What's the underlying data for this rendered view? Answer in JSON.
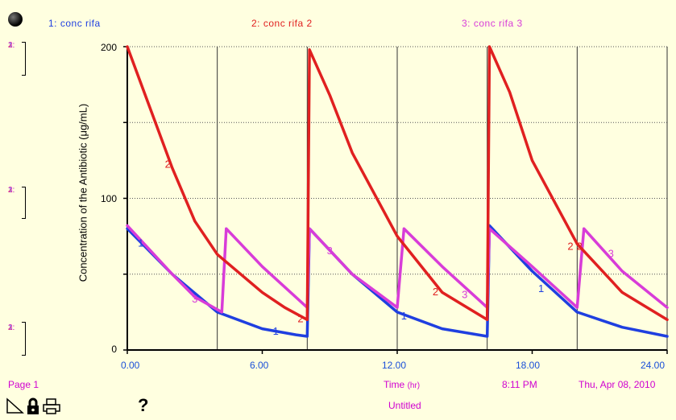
{
  "header": {
    "legend": [
      {
        "label": "1: conc rifa",
        "color": "#1f3fe0"
      },
      {
        "label": "2: conc rifa 2",
        "color": "#e02020"
      },
      {
        "label": "3: conc rifa 3",
        "color": "#d83cd8"
      }
    ]
  },
  "footer": {
    "page": "Page 1",
    "time_label": "Time",
    "time_unit": "(hr)",
    "clock": "8:11 PM",
    "date": "Thu, Apr 08, 2010",
    "doc_title": "Untitled",
    "help": "?"
  },
  "left_scale_labels": [
    "1:",
    "2:",
    "3:"
  ],
  "chart_data": {
    "type": "line",
    "ylabel": "Concentration of the Antibiotic  (μg/mL)",
    "xlabel": "Time (hr)",
    "xlim": [
      0,
      24
    ],
    "ylim": [
      0,
      200
    ],
    "x_ticks": [
      "0.00",
      "6.00",
      "12.00",
      "18.00",
      "24.00"
    ],
    "y_ticks": [
      "0",
      "100",
      "200"
    ],
    "grid": true,
    "series": [
      {
        "name": "conc rifa",
        "marker": "1",
        "color": "#1f3fe0",
        "points": [
          [
            0.0,
            80
          ],
          [
            2.0,
            50
          ],
          [
            4.0,
            25
          ],
          [
            6.0,
            14
          ],
          [
            7.5,
            10
          ],
          [
            8.0,
            9
          ],
          [
            8.1,
            80
          ],
          [
            10.0,
            50
          ],
          [
            12.0,
            25
          ],
          [
            14.0,
            14
          ],
          [
            16.0,
            9
          ],
          [
            16.1,
            82
          ],
          [
            18.0,
            52
          ],
          [
            20.0,
            25
          ],
          [
            22.0,
            15
          ],
          [
            24.0,
            9
          ]
        ]
      },
      {
        "name": "conc rifa 2",
        "marker": "2",
        "color": "#e02020",
        "points": [
          [
            0.0,
            200
          ],
          [
            1.0,
            160
          ],
          [
            2.0,
            120
          ],
          [
            3.0,
            85
          ],
          [
            4.0,
            63
          ],
          [
            6.0,
            38
          ],
          [
            7.0,
            28
          ],
          [
            8.0,
            20
          ],
          [
            8.1,
            198
          ],
          [
            9.0,
            168
          ],
          [
            10.0,
            130
          ],
          [
            12.0,
            75
          ],
          [
            14.0,
            38
          ],
          [
            16.0,
            20
          ],
          [
            16.1,
            200
          ],
          [
            17.0,
            170
          ],
          [
            18.0,
            125
          ],
          [
            20.0,
            70
          ],
          [
            22.0,
            38
          ],
          [
            24.0,
            20
          ]
        ]
      },
      {
        "name": "conc rifa 3",
        "marker": "3",
        "color": "#d83cd8",
        "points": [
          [
            0.0,
            82
          ],
          [
            2.0,
            50
          ],
          [
            3.0,
            35
          ],
          [
            4.2,
            25
          ],
          [
            4.4,
            80
          ],
          [
            6.0,
            55
          ],
          [
            8.0,
            28
          ],
          [
            8.1,
            80
          ],
          [
            10.0,
            50
          ],
          [
            12.0,
            28
          ],
          [
            12.3,
            80
          ],
          [
            14.0,
            55
          ],
          [
            16.0,
            28
          ],
          [
            16.1,
            80
          ],
          [
            18.0,
            55
          ],
          [
            20.0,
            28
          ],
          [
            20.3,
            80
          ],
          [
            22.0,
            52
          ],
          [
            24.0,
            28
          ]
        ]
      }
    ],
    "markers": [
      {
        "series": 0,
        "label": "1",
        "x": 0.6,
        "y": 70
      },
      {
        "series": 0,
        "label": "1",
        "x": 6.6,
        "y": 12
      },
      {
        "series": 0,
        "label": "1",
        "x": 12.3,
        "y": 22
      },
      {
        "series": 0,
        "label": "1",
        "x": 18.4,
        "y": 40
      },
      {
        "series": 1,
        "label": "2",
        "x": 1.8,
        "y": 122
      },
      {
        "series": 1,
        "label": "2",
        "x": 7.7,
        "y": 20
      },
      {
        "series": 1,
        "label": "2",
        "x": 13.7,
        "y": 38
      },
      {
        "series": 1,
        "label": "2",
        "x": 19.7,
        "y": 68
      },
      {
        "series": 1,
        "label": "2",
        "x": 20.1,
        "y": 68
      },
      {
        "series": 2,
        "label": "3",
        "x": 3.0,
        "y": 33
      },
      {
        "series": 2,
        "label": "3",
        "x": 9.0,
        "y": 65
      },
      {
        "series": 2,
        "label": "3",
        "x": 15.0,
        "y": 36
      },
      {
        "series": 2,
        "label": "3",
        "x": 21.5,
        "y": 63
      }
    ]
  }
}
